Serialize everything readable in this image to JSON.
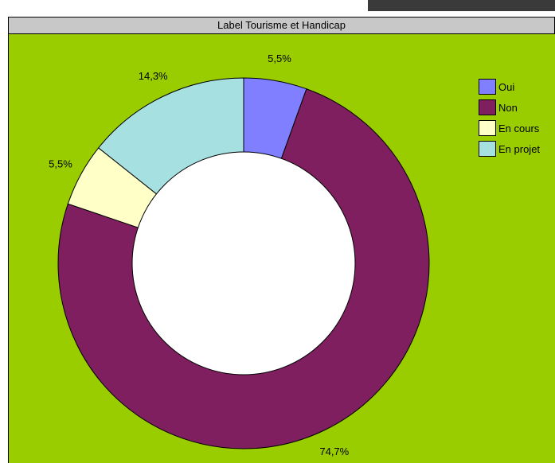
{
  "chart_data": {
    "type": "pie",
    "title": "Label Tourisme et Handicap",
    "background": "#9acd00",
    "title_background": "#c8c8c8",
    "legend_position": "right",
    "slices": [
      {
        "label": "Oui",
        "value": 5.5,
        "value_label": "5,5%",
        "color": "#7f7fff"
      },
      {
        "label": "Non",
        "value": 74.7,
        "value_label": "74,7%",
        "color": "#7f1f5f"
      },
      {
        "label": "En cours",
        "value": 5.5,
        "value_label": "5,5%",
        "color": "#ffffc8"
      },
      {
        "label": "En projet",
        "value": 14.3,
        "value_label": "14,3%",
        "color": "#a6e0e0"
      }
    ]
  }
}
